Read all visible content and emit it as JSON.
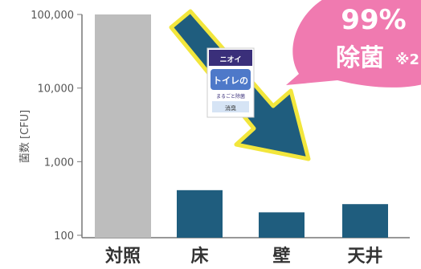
{
  "chart_data": {
    "type": "bar",
    "scale": "log",
    "ylabel": "菌数 [CFU]",
    "ylim": [
      100,
      100000
    ],
    "yticks": [
      "100,000",
      "10,000",
      "1,000",
      "100"
    ],
    "ytick_values": [
      100000,
      10000,
      1000,
      100
    ],
    "categories": [
      "対照",
      "床",
      "壁",
      "天井"
    ],
    "values": [
      100000,
      410,
      205,
      265
    ],
    "bar_colors": [
      "#bdbdbd",
      "#1f5d7e",
      "#1f5d7e",
      "#1f5d7e"
    ],
    "grid": false
  },
  "badge": {
    "text": "99%除菌",
    "line1": "99%",
    "line2": "除菌",
    "note": "※2",
    "color": "#f07ab0"
  },
  "product": {
    "headline": "トイレの",
    "sub1": "まるごと除菌",
    "sub2": "ニオイ",
    "line": "消臭"
  },
  "arrow": {
    "color": "#1f5d7e",
    "border": "#f2e63c"
  }
}
